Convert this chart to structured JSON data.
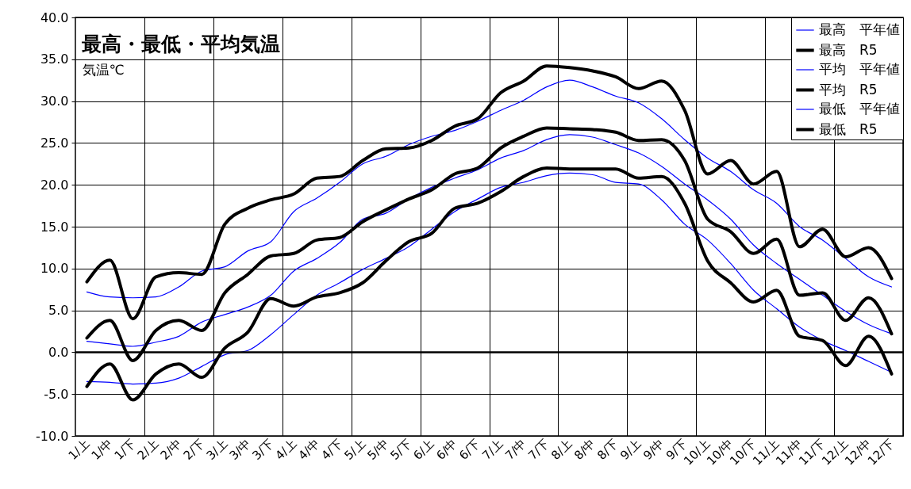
{
  "chart_data": {
    "type": "line",
    "title": "最高・最低・平均気温",
    "ylabel": "気温℃",
    "categories": [
      "1/上",
      "1/中",
      "1/下",
      "2/上",
      "2/中",
      "2/下",
      "3/上",
      "3/中",
      "3/下",
      "4/上",
      "4/中",
      "4/下",
      "5/上",
      "5/中",
      "5/下",
      "6/上",
      "6/中",
      "6/下",
      "7/上",
      "7/中",
      "7/下",
      "8/上",
      "8/中",
      "8/下",
      "9/上",
      "9/中",
      "9/下",
      "10/上",
      "10/中",
      "10/下",
      "11/上",
      "11/中",
      "11/下",
      "12/上",
      "12/中",
      "12/下"
    ],
    "series": [
      {
        "name": "最高　平年値",
        "color": "#0000ff",
        "values": [
          7.2,
          6.6,
          6.5,
          6.6,
          7.8,
          9.7,
          10.2,
          12.1,
          13.2,
          16.8,
          18.4,
          20.3,
          22.5,
          23.4,
          24.8,
          25.8,
          26.5,
          27.6,
          28.9,
          30.1,
          31.7,
          32.5,
          31.7,
          30.6,
          29.8,
          27.9,
          25.4,
          23.2,
          21.6,
          19.4,
          17.8,
          15.0,
          13.4,
          11.2,
          9.0,
          7.8
        ]
      },
      {
        "name": "最高　R5",
        "color": "#000000",
        "values": [
          8.4,
          11.0,
          4.0,
          9.0,
          9.5,
          9.3,
          15.3,
          17.2,
          18.2,
          18.9,
          20.8,
          21.0,
          22.9,
          24.3,
          24.4,
          25.3,
          27.0,
          27.9,
          31.0,
          32.4,
          34.2,
          34.0,
          33.6,
          32.9,
          31.5,
          32.4,
          28.9,
          21.3,
          22.9,
          20.1,
          21.6,
          12.6,
          14.7,
          11.4,
          12.5,
          8.8
        ]
      },
      {
        "name": "平均　平年値",
        "color": "#0000ff",
        "values": [
          1.3,
          1.0,
          0.7,
          1.2,
          1.9,
          3.6,
          4.5,
          5.4,
          6.8,
          9.7,
          11.2,
          13.1,
          15.9,
          16.6,
          18.3,
          19.7,
          20.8,
          21.8,
          23.2,
          24.1,
          25.4,
          26.0,
          25.7,
          24.8,
          23.8,
          22.2,
          20.1,
          18.2,
          15.9,
          12.8,
          10.6,
          8.7,
          6.8,
          4.9,
          3.3,
          2.2
        ]
      },
      {
        "name": "平均　R5",
        "color": "#000000",
        "values": [
          1.7,
          3.8,
          -1.0,
          2.6,
          3.8,
          2.6,
          7.1,
          9.3,
          11.5,
          11.8,
          13.4,
          13.7,
          15.6,
          17.0,
          18.3,
          19.4,
          21.3,
          22.0,
          24.4,
          25.8,
          26.8,
          26.7,
          26.6,
          26.3,
          25.3,
          25.4,
          22.9,
          15.9,
          14.4,
          11.8,
          13.5,
          6.8,
          7.1,
          3.8,
          6.5,
          2.2
        ]
      },
      {
        "name": "最低　平年値",
        "color": "#0000ff",
        "values": [
          -3.5,
          -3.6,
          -3.8,
          -3.7,
          -3.1,
          -1.7,
          -0.3,
          0.2,
          2.1,
          4.5,
          6.8,
          8.3,
          9.9,
          11.2,
          12.6,
          14.7,
          16.8,
          18.3,
          19.7,
          20.3,
          21.1,
          21.4,
          21.2,
          20.3,
          20.1,
          18.2,
          15.3,
          13.4,
          10.6,
          7.4,
          5.2,
          3.0,
          1.4,
          0.2,
          -1.1,
          -2.4
        ]
      },
      {
        "name": "最低　R5",
        "color": "#000000",
        "values": [
          -4.1,
          -1.4,
          -5.7,
          -2.6,
          -1.4,
          -3.0,
          0.5,
          2.4,
          6.4,
          5.5,
          6.6,
          7.1,
          8.3,
          10.9,
          13.2,
          14.2,
          17.2,
          17.8,
          19.2,
          21.0,
          22.0,
          21.9,
          21.9,
          21.9,
          20.8,
          21.0,
          17.8,
          10.9,
          8.3,
          6.0,
          7.4,
          1.9,
          1.4,
          -1.6,
          1.9,
          -2.6
        ]
      }
    ],
    "ylim": [
      -10,
      40
    ],
    "yticks": [
      {
        "value": -10,
        "label": "-10.0"
      },
      {
        "value": -5,
        "label": "-5.0"
      },
      {
        "value": 0,
        "label": "0.0"
      },
      {
        "value": 5,
        "label": "5.0"
      },
      {
        "value": 10,
        "label": "10.0"
      },
      {
        "value": 15,
        "label": "15.0"
      },
      {
        "value": 20,
        "label": "20.0"
      },
      {
        "value": 25,
        "label": "25.0"
      },
      {
        "value": 30,
        "label": "30.0"
      },
      {
        "value": 35,
        "label": "35.0"
      },
      {
        "value": 40,
        "label": "40.0"
      }
    ],
    "ref_lines": [
      {
        "axis": "y",
        "value": 0,
        "color": "#000000"
      }
    ],
    "grid": true,
    "legend": "top right",
    "marker": "none",
    "line_style": "solid"
  }
}
